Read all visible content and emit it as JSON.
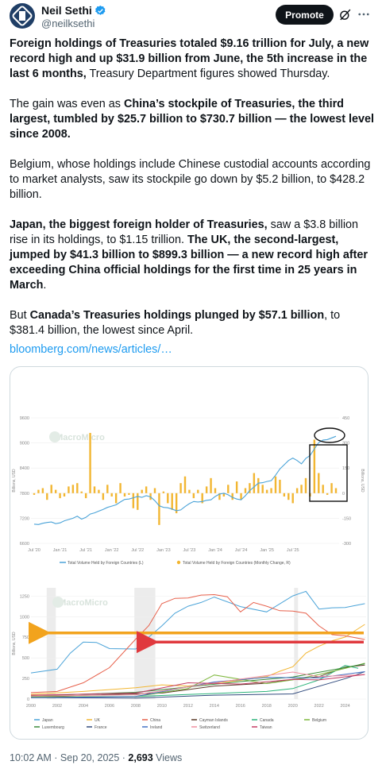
{
  "author": {
    "name": "Neil Sethi",
    "handle": "@neilksethi"
  },
  "actions": {
    "promote_label": "Promote"
  },
  "paragraphs": [
    [
      {
        "t": "Foreign holdings of Treasuries totaled $9.16 trillion for July, a new record high and up $31.9 billion from June, the 5th increase in the last 6 months,",
        "b": true
      },
      {
        "t": " Treasury Department figures showed Thursday.",
        "b": false
      }
    ],
    [
      {
        "t": "The gain was even as ",
        "b": false
      },
      {
        "t": "China’s stockpile of Treasuries, the third largest, tumbled by $25.7 billion to $730.7 billion — the lowest level since 2008.",
        "b": true
      }
    ],
    [
      {
        "t": "Belgium, whose holdings include Chinese custodial accounts according to market analysts, saw its stockpile go down by $5.2 billion, to $428.2 billion.",
        "b": false
      }
    ],
    [
      {
        "t": "Japan, the biggest foreign holder of Treasuries,",
        "b": true
      },
      {
        "t": " saw a $3.8 billion rise in its holdings, to $1.15 trillion. ",
        "b": false
      },
      {
        "t": "The UK, the second-largest, jumped by $41.3 billion to $899.3 billion — a new record high after exceeding China official holdings for the first time in 25 years in March",
        "b": true
      },
      {
        "t": ".",
        "b": false
      }
    ],
    [
      {
        "t": "But ",
        "b": false
      },
      {
        "t": "Canada’s Treasuries holdings plunged by $57.1 billion",
        "b": true
      },
      {
        "t": ", to $381.4 billion, the lowest since April.",
        "b": false
      }
    ]
  ],
  "link_text": "bloomberg.com/news/articles/…",
  "meta": {
    "time": "10:02 AM · Sep 20, 2025 · ",
    "views": "2,693",
    "views_label": " Views"
  },
  "colors": {
    "line": "#4aa3d8",
    "bar": "#f2b632",
    "annotate_orange": "#f2a31d",
    "annotate_red": "#e0393e"
  },
  "chart_data": [
    {
      "type": "bar",
      "watermark": "MacroMicro",
      "ylabel_left": "Billions, USD",
      "ylabel_right": "Billions, USD",
      "y_left_ticks": [
        "9600",
        "9000",
        "8400",
        "7800",
        "7200",
        "6600"
      ],
      "y_left_range": [
        6600,
        9600
      ],
      "y_right_ticks": [
        "450",
        "300",
        "150",
        "0",
        "-150",
        "-300"
      ],
      "y_right_range": [
        -300,
        450
      ],
      "x_ticks": [
        "Jul '20",
        "Jan '21",
        "Jul '21",
        "Jan '22",
        "Jul '22",
        "Jan '23",
        "Jul '23",
        "Jan '24",
        "Jul '24",
        "Jan '25",
        "Jul '25"
      ],
      "legend": [
        "Total Volume Held by Foreign Countries (L)",
        "Total Volume Held by Foreign Countries (Monthly Change, R)"
      ],
      "line_values": [
        7060,
        7050,
        7080,
        7100,
        7110,
        7070,
        7090,
        7140,
        7170,
        7200,
        7250,
        7180,
        7220,
        7300,
        7330,
        7370,
        7410,
        7460,
        7490,
        7520,
        7590,
        7650,
        7660,
        7690,
        7720,
        7700,
        7740,
        7710,
        7620,
        7500,
        7460,
        7450,
        7420,
        7380,
        7400,
        7480,
        7550,
        7600,
        7590,
        7600,
        7630,
        7640,
        7720,
        7780,
        7800,
        7760,
        7700,
        7660,
        7640,
        7740,
        7860,
        7950,
        8040,
        8050,
        8080,
        8100,
        8230,
        8380,
        8480,
        8580,
        8640,
        8580,
        8500,
        8630,
        8700,
        8860,
        9010,
        9070,
        9080,
        9120,
        9160
      ],
      "bar_values": [
        -10,
        20,
        30,
        -40,
        50,
        20,
        -30,
        -20,
        40,
        50,
        60,
        10,
        -30,
        360,
        40,
        20,
        -40,
        50,
        -20,
        -60,
        60,
        -20,
        -10,
        -90,
        -100,
        20,
        40,
        -40,
        30,
        -190,
        10,
        -60,
        -100,
        -120,
        60,
        100,
        20,
        -30,
        20,
        -60,
        40,
        90,
        30,
        -40,
        -20,
        50,
        -40,
        70,
        -40,
        30,
        60,
        120,
        90,
        50,
        20,
        30,
        100,
        80,
        -20,
        -40,
        -60,
        30,
        50,
        90,
        -20,
        320,
        120,
        50,
        -10,
        60,
        30
      ],
      "annotation_ellipse": "peak Jul '25",
      "annotation_box": "Jan '25 – Jul '25"
    },
    {
      "type": "line",
      "watermark": "MacroMicro",
      "ylabel": "Billions, USD",
      "y_ticks": [
        "1250",
        "1000",
        "750",
        "500",
        "250",
        "0"
      ],
      "y_range": [
        0,
        1350
      ],
      "x_ticks": [
        "2000",
        "2002",
        "2004",
        "2006",
        "2008",
        "2010",
        "2012",
        "2014",
        "2016",
        "2018",
        "2020",
        "2022",
        "2024"
      ],
      "x_range": [
        2000,
        2025.6
      ],
      "recession_shading": [
        [
          2001.2,
          2001.9
        ],
        [
          2007.9,
          2009.5
        ],
        [
          2020.1,
          2020.4
        ]
      ],
      "legend": [
        "Japan",
        "UK",
        "China",
        "Cayman Islands",
        "Canada",
        "Belgium",
        "Luxembourg",
        "France",
        "Ireland",
        "Switzerland",
        "Taiwan"
      ],
      "series": [
        {
          "name": "Japan",
          "color": "#4aa3d8",
          "x": [
            2000,
            2002,
            2003,
            2004,
            2005,
            2006,
            2008,
            2009,
            2010,
            2011,
            2012,
            2013,
            2014,
            2016,
            2018,
            2020,
            2021,
            2022,
            2023,
            2024,
            2025.5
          ],
          "y": [
            310,
            370,
            550,
            700,
            680,
            620,
            600,
            760,
            880,
            1050,
            1120,
            1180,
            1230,
            1130,
            1050,
            1260,
            1300,
            1100,
            1100,
            1120,
            1150
          ]
        },
        {
          "name": "UK",
          "color": "#f2b632",
          "x": [
            2000,
            2004,
            2008,
            2010,
            2012,
            2014,
            2016,
            2018,
            2019,
            2020,
            2021,
            2022,
            2023,
            2024,
            2025.5
          ],
          "y": [
            50,
            100,
            130,
            180,
            150,
            200,
            220,
            280,
            330,
            400,
            550,
            650,
            700,
            760,
            899
          ]
        },
        {
          "name": "China",
          "color": "#e7604b",
          "x": [
            2000,
            2002,
            2004,
            2006,
            2008,
            2009,
            2010,
            2011,
            2012,
            2013,
            2014,
            2015,
            2016,
            2017,
            2018,
            2019,
            2020,
            2021,
            2022,
            2023,
            2024,
            2025.5
          ],
          "y": [
            70,
            100,
            190,
            390,
            720,
            900,
            1150,
            1230,
            1220,
            1270,
            1260,
            1250,
            1050,
            1180,
            1120,
            1080,
            1060,
            1050,
            880,
            790,
            760,
            731
          ]
        },
        {
          "name": "Cayman Islands",
          "color": "#5b3a29",
          "x": [
            2000,
            2010,
            2014,
            2018,
            2020,
            2022,
            2024,
            2025.5
          ],
          "y": [
            20,
            80,
            150,
            200,
            230,
            280,
            380,
            420
          ]
        },
        {
          "name": "Canada",
          "color": "#2bb37a",
          "x": [
            2000,
            2008,
            2014,
            2018,
            2020,
            2022,
            2024,
            2025
          ],
          "y": [
            20,
            40,
            60,
            100,
            120,
            240,
            400,
            381
          ]
        },
        {
          "name": "Belgium",
          "color": "#7fb83e",
          "x": [
            2000,
            2008,
            2012,
            2014,
            2018,
            2020,
            2022,
            2024,
            2025.5
          ],
          "y": [
            20,
            40,
            120,
            300,
            180,
            240,
            290,
            380,
            428
          ]
        },
        {
          "name": "Luxembourg",
          "color": "#3c8c3c",
          "x": [
            2000,
            2008,
            2012,
            2016,
            2020,
            2024,
            2025.5
          ],
          "y": [
            30,
            90,
            140,
            220,
            260,
            390,
            420
          ]
        },
        {
          "name": "France",
          "color": "#334d7f",
          "x": [
            2000,
            2008,
            2014,
            2020,
            2024,
            2025.5
          ],
          "y": [
            10,
            20,
            40,
            70,
            240,
            340
          ]
        },
        {
          "name": "Ireland",
          "color": "#4472c4",
          "x": [
            2000,
            2008,
            2014,
            2018,
            2022,
            2025.5
          ],
          "y": [
            10,
            40,
            200,
            270,
            250,
            340
          ]
        },
        {
          "name": "Switzerland",
          "color": "#f08fa0",
          "x": [
            2000,
            2008,
            2012,
            2016,
            2020,
            2022,
            2025.5
          ],
          "y": [
            30,
            60,
            140,
            250,
            320,
            280,
            290
          ]
        },
        {
          "name": "Taiwan",
          "color": "#c43b64",
          "x": [
            2000,
            2008,
            2012,
            2016,
            2020,
            2022,
            2025.5
          ],
          "y": [
            40,
            80,
            190,
            190,
            230,
            240,
            290
          ]
        }
      ],
      "annotation_arrows": [
        "orange arrow at UK holdings level",
        "red arrow at China holdings level"
      ]
    }
  ]
}
